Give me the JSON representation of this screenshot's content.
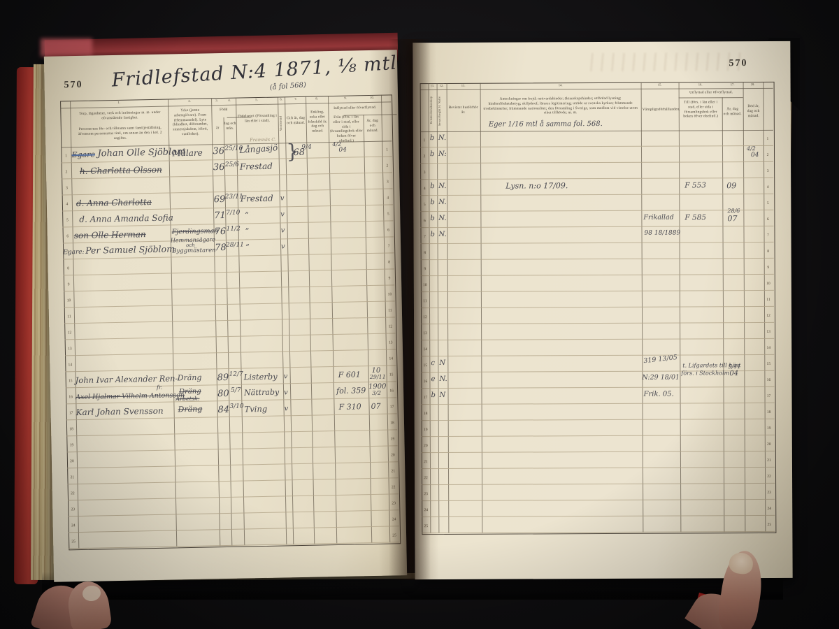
{
  "book": {
    "left_page_number": "570",
    "right_page_number": "570",
    "title": "Fridlefstad N:4 1871, ⅛ mtl",
    "title_note": "(å fol 568)"
  },
  "row_numbers": [
    "1",
    "2",
    "3",
    "4",
    "5",
    "6",
    "7",
    "8",
    "9",
    "10",
    "11",
    "12",
    "13",
    "14",
    "15",
    "16",
    "17",
    "18",
    "19",
    "20",
    "21",
    "22",
    "23",
    "24",
    "25"
  ],
  "left_table": {
    "col_numbers": [
      "1.",
      "2.",
      "3.",
      "4.",
      "5.",
      "6.",
      "7.",
      "8.",
      "9.",
      "10."
    ],
    "headers": {
      "col1a": "Torp, lägenheter, verk och inrättningar m. m. under ofvanstående fastighet.",
      "col1b": "Personernas för- och tillnamn samt familjeställning, äfvensom personernas titel, om annan än den i kol. 2 angifna.",
      "col2": "Yrke (jemte arbetsgifvare). Fram (Hemmansdel). Lyte (blindhet, döfstumhet, sinnessjukdom, idioti, vanförhet).",
      "born_group": "Född",
      "born_year": "år",
      "born_day": "dag och mån.",
      "col5": "Födelseort (Församling i län eller i stad).",
      "col6_vertical": "Vaccinerad",
      "col7": "Gift år, dag och månad.",
      "col8": "Enkling, enka eller frånskild år, dag och månad.",
      "in_group": "Inflyttad eller öfverflyttad.",
      "col9": "Från (förs. i län eller i stad, eller sida i församlingsbok eller boken öfver obefintl.)",
      "col10": "År, dag och månad."
    }
  },
  "right_table": {
    "col_numbers": [
      "11.",
      "12.",
      "13.",
      "14.",
      "15.",
      "16.",
      "17.",
      "18."
    ],
    "headers": {
      "c11_vertical": "Kristendomskunskap",
      "c12_vertical": "Senast begått H. Nattv.",
      "c13": "Bevistat husförhör år.",
      "c14": "Anteckningar om frejd; nattvardshinder; äktenskapshinder; utfärdad lysning; hinderslöshetsbetyg; skiljobref; lärares legitimering; uträde ur svenska kyrkan; främmande trosbekännelse; främmande nationalitet; den församling i Sverige, som medlem vid vistelse utom riket tillhörde; m. m.",
      "c15": "Värnpligtsförhållanden.",
      "out_group": "Utflyttad eller öfverflyttad.",
      "c16": "Till (förs. i län eller i stad, eller sida i församlingsbok eller boken öfver obefintl.)",
      "c17": "År, dag och månad.",
      "c18": "Död år, dag och månad."
    }
  },
  "hw": {
    "l1_prefix": "Egare",
    "l1_name": "Johan Olle Sjöblom",
    "l1_yrke": "Målare",
    "l1_yr": "36",
    "l1_dag": "25/10",
    "l1_ort": "Långasjö",
    "l1_note": "Framnäs C.",
    "l2_name": "h. Charlotta Olsson",
    "l2_yr": "36",
    "l2_dag": "25/6",
    "l2_ort": "Frestad",
    "gift_brace": "}",
    "gift_yr": "68",
    "gift_frac": "9/4",
    "enk_a": "4/2",
    "enk_b": "04",
    "l4_name": "d. Anna Charlotta",
    "l4_yr": "69",
    "l4_dag": "23/11",
    "l4_ort": "Frestad",
    "l4_v": "v",
    "l5_name": "d. Anna Amanda Sofia",
    "l5_yr": "71",
    "l5_dag": "7/10",
    "l5_ort": "”",
    "l5_v": "v",
    "l6_name": "son Olle Herman",
    "l6_yrke": "Fjerdingsman",
    "l6_yr": "76",
    "l6_dag": "11/2",
    "l6_ort": "”",
    "l6_v": "v",
    "l7_prefix": "Egare:",
    "l7_name": "Per Samuel Sjöblom",
    "l7_yrke1": "Hemmansägare",
    "l7_yrke2": "och",
    "l7_yrke3": "Byggmästaren",
    "l7_yr": "78",
    "l7_dag": "28/11",
    "l7_ort": "”",
    "l7_v": "v",
    "l15_name": "John Ivar Alexander Ren-",
    "l15_yrke": "Dräng",
    "l15_yr": "89",
    "l15_dag": "12/7",
    "l15_ort": "Listerby",
    "l15_v": "v",
    "l15_fran": "F 601",
    "l15_ara": "10",
    "l15_arb": "29/11",
    "l16_name": "Axel Hjalmar Vilhelm Antonsson",
    "l16_sup": "fr.",
    "l16_yrke1": "Dräng",
    "l16_yrke2": "Arbetsk.",
    "l16_yr": "80",
    "l16_dag": "5/7",
    "l16_ort": "Nättraby",
    "l16_v": "v",
    "l16_fran": "fol. 359",
    "l16_ara": "1900",
    "l16_arb": "3/2",
    "l17_name": "Karl Johan Svensson",
    "l17_yrke": "Dräng",
    "l17_yr": "84",
    "l17_dag": "3/10",
    "l17_ort": "Tving",
    "l17_v": "v",
    "l17_fran": "F 310",
    "l17_ar": "07",
    "r_note_top": "Eger 1/16 mtl å samma fol. 568.",
    "r1_c11": "b",
    "r1_c12": "N.",
    "r2_c11": "b",
    "r2_c12": "N:",
    "r4_c11": "b",
    "r4_c12": "N.",
    "r5_c11": "b",
    "r5_c12": "N.",
    "r6_c11": "b",
    "r6_c12": "N.",
    "r7_c11": "b",
    "r7_c12": "N.",
    "r15_c11": "c",
    "r15_c12": "N",
    "r16_c11": "e",
    "r16_c12": "N.",
    "r17_c11": "b",
    "r17_c12": "N",
    "r2_dod_a": "4/2",
    "r2_dod_b": "04",
    "r4_note": "Lysn. n:o 17/09.",
    "r4_till": "F 553",
    "r4_ar": "09",
    "r6_varn": "Frikallad",
    "r6_till": "F 585",
    "r6_ara": "28/6",
    "r6_arb": "07",
    "r7_varn": "98 18/1889",
    "r15_varn": "319 13/05",
    "r1516_till1": "t. Lifgardets till häst",
    "r1516_till2": "förs. i Stockholm",
    "r1516_ara": "5/11",
    "r1516_arb": "04",
    "r16_varn": "N:29 18/01",
    "r17_varn": "Frik. 05."
  }
}
